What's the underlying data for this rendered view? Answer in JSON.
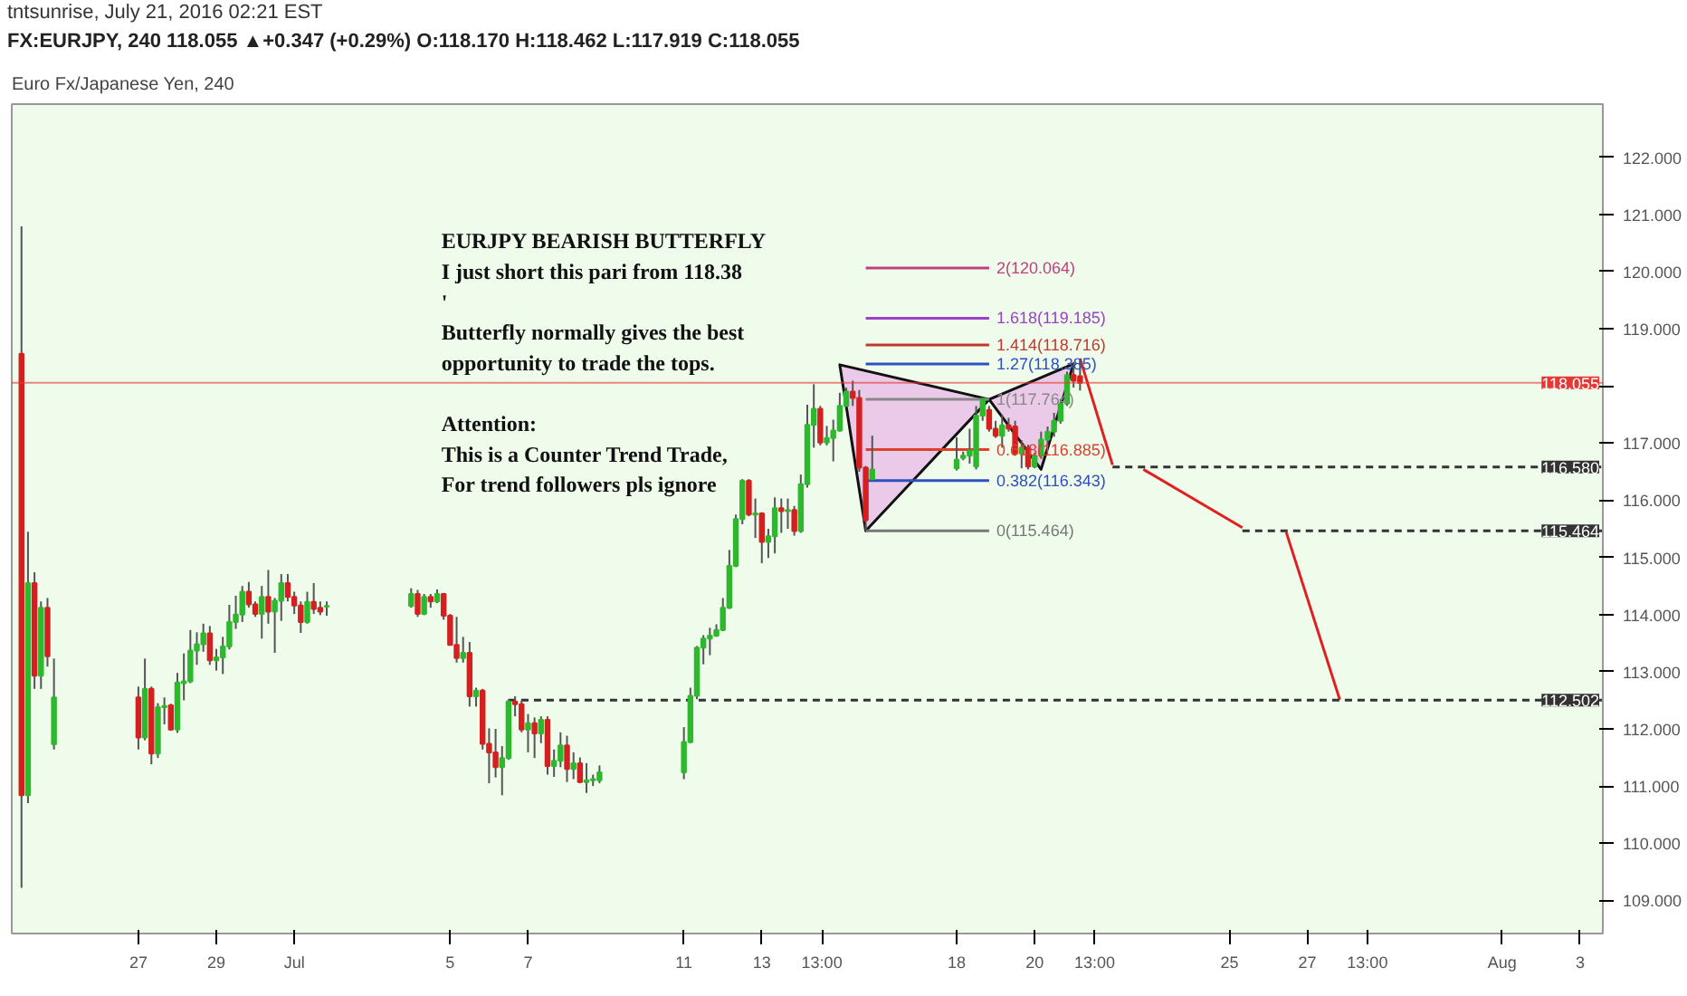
{
  "chart_data": {
    "type": "candlestick",
    "title": "Euro Fx/Japanese Yen, 240",
    "subtitle": "FX:EURJPY, 240 118.055 ▲+0.347 (+0.29%) O:118.170 H:118.462 L:117.919 C:118.055",
    "annotations": [
      "tntsunrise, July 21, 2016 02:21 EST",
      "EURJPY BEARISH BUTTERFLY\nI just short this pari from 118.38\n'\nButterfly normally gives the best\nopportunity to trade the tops.\n\nAttention:\nThis is a Counter Trend Trade,\nFor trend followers pls ignore"
    ],
    "xlim": [
      "2016-06-23T18:00",
      "2016-08-03T14:00"
    ],
    "ylim": [
      108.42,
      122.93
    ],
    "xticks": [
      {
        "value": "2016-06-27",
        "label": "27"
      },
      {
        "value": "2016-06-29",
        "label": "29"
      },
      {
        "value": "2016-07-01",
        "label": "Jul"
      },
      {
        "value": "2016-07-05",
        "label": "5"
      },
      {
        "value": "2016-07-07",
        "label": "7"
      },
      {
        "value": "2016-07-11",
        "label": "11"
      },
      {
        "value": "2016-07-13",
        "label": "13"
      },
      {
        "value": "2016-07-14T13:00",
        "label": "13:00"
      },
      {
        "value": "2016-07-18",
        "label": "18"
      },
      {
        "value": "2016-07-20",
        "label": "20"
      },
      {
        "value": "2016-07-21T13:00",
        "label": "13:00"
      },
      {
        "value": "2016-07-25",
        "label": "25"
      },
      {
        "value": "2016-07-27",
        "label": "27"
      },
      {
        "value": "2016-07-28T13:00",
        "label": "13:00"
      },
      {
        "value": "2016-08-01",
        "label": "Aug"
      },
      {
        "value": "2016-08-03",
        "label": "3"
      }
    ],
    "yticks": [
      {
        "value": 109,
        "label": "109.000"
      },
      {
        "value": 110,
        "label": "110.000"
      },
      {
        "value": 111,
        "label": "111.000"
      },
      {
        "value": 112,
        "label": "112.000"
      },
      {
        "value": 113,
        "label": "113.000"
      },
      {
        "value": 114,
        "label": "114.000"
      },
      {
        "value": 115,
        "label": "115.000"
      },
      {
        "value": 116,
        "label": "116.000"
      },
      {
        "value": 117,
        "label": "117.000"
      },
      {
        "value": 118,
        "label": null
      },
      {
        "value": 119,
        "label": "119.000"
      },
      {
        "value": 120,
        "label": "120.000"
      },
      {
        "value": 121,
        "label": "121.000"
      },
      {
        "value": 122,
        "label": "122.000"
      }
    ],
    "ref_lines": [
      {
        "axis": "y",
        "value": 118.055,
        "label": "118.055",
        "color": "#e53935"
      }
    ],
    "series": [
      {
        "color": "#2db82d",
        "x": [
          "2016-06-24T04:00",
          "2016-06-24T12:00",
          "2016-06-24T20:00",
          "2016-06-27T04:00",
          "2016-06-27T12:00",
          "2016-06-27T16:00",
          "2016-06-28T00:00",
          "2016-06-28T04:00",
          "2016-06-28T08:00",
          "2016-06-28T12:00",
          "2016-06-28T16:00",
          "2016-06-29T00:00",
          "2016-06-29T04:00",
          "2016-06-29T08:00",
          "2016-06-29T12:00",
          "2016-06-29T16:00",
          "2016-06-30T04:00",
          "2016-06-30T12:00",
          "2016-06-30T16:00",
          "2016-07-01T08:00",
          "2016-07-01T20:00",
          "2016-07-04T00:00",
          "2016-07-04T08:00",
          "2016-07-04T16:00",
          "2016-07-05T08:00",
          "2016-07-05T16:00",
          "2016-07-06T08:00",
          "2016-07-06T12:00",
          "2016-07-07T00:00",
          "2016-07-07T08:00",
          "2016-07-07T16:00",
          "2016-07-07T20:00",
          "2016-07-08T04:00",
          "2016-07-08T12:00",
          "2016-07-08T16:00",
          "2016-07-08T20:00",
          "2016-07-11T00:00",
          "2016-07-11T04:00",
          "2016-07-11T08:00",
          "2016-07-11T12:00",
          "2016-07-11T16:00",
          "2016-07-11T20:00",
          "2016-07-12T00:00",
          "2016-07-12T04:00",
          "2016-07-12T08:00",
          "2016-07-12T12:00",
          "2016-07-12T20:00",
          "2016-07-13T04:00",
          "2016-07-13T08:00",
          "2016-07-13T16:00",
          "2016-07-14T00:00",
          "2016-07-14T04:00",
          "2016-07-14T08:00",
          "2016-07-14T16:00",
          "2016-07-14T20:00",
          "2016-07-15T00:00",
          "2016-07-15T04:00",
          "2016-07-15T20:00",
          "2016-07-18T00:00",
          "2016-07-18T04:00",
          "2016-07-18T08:00",
          "2016-07-18T12:00",
          "2016-07-18T16:00",
          "2016-07-19T04:00",
          "2016-07-19T16:00",
          "2016-07-20T00:00",
          "2016-07-20T04:00",
          "2016-07-20T08:00",
          "2016-07-20T12:00",
          "2016-07-20T16:00",
          "2016-07-20T20:00"
        ],
        "ohlc": [
          [
            110.84,
            115.45,
            110.7,
            114.55
          ],
          [
            112.93,
            114.23,
            112.7,
            114.12
          ],
          [
            111.73,
            113.23,
            111.64,
            112.55
          ],
          [
            111.85,
            113.23,
            111.8,
            112.7
          ],
          [
            111.57,
            112.45,
            111.49,
            112.38
          ],
          [
            112.38,
            112.55,
            112.08,
            112.4
          ],
          [
            111.99,
            112.98,
            111.93,
            112.81
          ],
          [
            112.8,
            113.32,
            112.5,
            112.83
          ],
          [
            112.83,
            113.73,
            112.8,
            113.37
          ],
          [
            113.37,
            113.69,
            113.12,
            113.48
          ],
          [
            113.48,
            113.84,
            113.35,
            113.67
          ],
          [
            113.2,
            113.4,
            113.02,
            113.25
          ],
          [
            113.25,
            113.61,
            112.96,
            113.44
          ],
          [
            113.44,
            114.17,
            113.39,
            113.87
          ],
          [
            113.87,
            114.33,
            113.75,
            114.0
          ],
          [
            114.0,
            114.5,
            113.87,
            114.4
          ],
          [
            114.01,
            114.5,
            113.58,
            114.31
          ],
          [
            114.05,
            114.29,
            113.33,
            114.24
          ],
          [
            114.24,
            114.71,
            113.89,
            114.55
          ],
          [
            113.87,
            114.4,
            113.84,
            114.22
          ],
          [
            114.14,
            114.23,
            113.98,
            114.15
          ],
          [
            114.15,
            114.46,
            114.12,
            114.36
          ],
          [
            114.01,
            114.36,
            113.99,
            114.31
          ],
          [
            114.23,
            114.44,
            114.2,
            114.36
          ],
          [
            113.24,
            113.61,
            113.16,
            113.33
          ],
          [
            112.57,
            112.72,
            112.39,
            112.67
          ],
          [
            111.33,
            111.7,
            110.84,
            111.49
          ],
          [
            111.49,
            112.52,
            111.46,
            112.48
          ],
          [
            111.99,
            112.26,
            111.59,
            112.1
          ],
          [
            111.92,
            112.22,
            111.75,
            112.16
          ],
          [
            111.35,
            111.64,
            111.16,
            111.44
          ],
          [
            111.44,
            111.94,
            111.33,
            111.71
          ],
          [
            111.3,
            111.59,
            111.12,
            111.4
          ],
          [
            111.07,
            111.4,
            110.88,
            111.1
          ],
          [
            111.1,
            111.2,
            111.0,
            111.12
          ],
          [
            111.1,
            111.36,
            111.05,
            111.24
          ],
          [
            111.24,
            112.03,
            111.12,
            111.77
          ],
          [
            111.77,
            112.72,
            111.75,
            112.58
          ],
          [
            112.58,
            113.45,
            112.52,
            113.42
          ],
          [
            113.42,
            113.64,
            113.13,
            113.58
          ],
          [
            113.58,
            113.77,
            113.29,
            113.63
          ],
          [
            113.63,
            113.83,
            113.61,
            113.73
          ],
          [
            113.73,
            114.29,
            113.71,
            114.12
          ],
          [
            114.12,
            115.13,
            114.1,
            114.85
          ],
          [
            114.85,
            115.75,
            114.83,
            115.67
          ],
          [
            115.67,
            116.37,
            115.58,
            116.34
          ],
          [
            115.75,
            116.03,
            115.34,
            115.77
          ],
          [
            115.27,
            115.5,
            114.99,
            115.37
          ],
          [
            115.37,
            116.05,
            115.07,
            115.86
          ],
          [
            115.81,
            116.03,
            115.5,
            115.83
          ],
          [
            115.46,
            116.45,
            115.43,
            116.28
          ],
          [
            116.28,
            117.67,
            116.22,
            117.32
          ],
          [
            117.32,
            118.03,
            116.92,
            117.6
          ],
          [
            117.01,
            117.3,
            116.96,
            117.09
          ],
          [
            117.09,
            117.41,
            116.68,
            117.22
          ],
          [
            117.22,
            117.88,
            117.2,
            117.65
          ],
          [
            117.65,
            117.97,
            117.64,
            117.9
          ],
          [
            116.37,
            117.13,
            116.33,
            116.54
          ],
          [
            116.56,
            117.1,
            116.52,
            116.71
          ],
          [
            116.74,
            116.85,
            116.7,
            116.78
          ],
          [
            116.78,
            117.25,
            116.64,
            116.87
          ],
          [
            116.59,
            117.65,
            116.54,
            117.48
          ],
          [
            117.48,
            117.8,
            117.39,
            117.77
          ],
          [
            117.13,
            117.5,
            116.92,
            117.31
          ],
          [
            116.82,
            117.05,
            116.56,
            116.92
          ],
          [
            116.59,
            116.83,
            116.56,
            116.78
          ],
          [
            116.78,
            117.2,
            116.73,
            117.06
          ],
          [
            117.06,
            117.29,
            116.96,
            117.2
          ],
          [
            117.2,
            117.53,
            117.11,
            117.39
          ],
          [
            117.39,
            117.77,
            117.34,
            117.69
          ],
          [
            117.69,
            118.25,
            117.65,
            118.19
          ]
        ]
      },
      {
        "color": "#d42020",
        "x": [
          "2016-06-24T00:00",
          "2016-06-24T08:00",
          "2016-06-24T16:00",
          "2016-06-27T00:00",
          "2016-06-27T08:00",
          "2016-06-27T20:00",
          "2016-06-28T20:00",
          "2016-06-29T20:00",
          "2016-06-30T00:00",
          "2016-06-30T08:00",
          "2016-06-30T20:00",
          "2016-07-01T00:00",
          "2016-07-01T04:00",
          "2016-07-01T12:00",
          "2016-07-01T16:00",
          "2016-07-04T04:00",
          "2016-07-04T12:00",
          "2016-07-04T20:00",
          "2016-07-05T00:00",
          "2016-07-05T04:00",
          "2016-07-05T12:00",
          "2016-07-05T20:00",
          "2016-07-06T00:00",
          "2016-07-06T04:00",
          "2016-07-06T16:00",
          "2016-07-06T20:00",
          "2016-07-07T04:00",
          "2016-07-07T12:00",
          "2016-07-08T00:00",
          "2016-07-08T08:00",
          "2016-07-12T16:00",
          "2016-07-13T00:00",
          "2016-07-13T12:00",
          "2016-07-13T20:00",
          "2016-07-14T12:00",
          "2016-07-15T08:00",
          "2016-07-15T12:00",
          "2016-07-15T16:00",
          "2016-07-18T20:00",
          "2016-07-19T00:00",
          "2016-07-19T08:00",
          "2016-07-19T12:00",
          "2016-07-19T20:00",
          "2016-07-21T00:00",
          "2016-07-21T04:00"
        ],
        "ohlc": [
          [
            118.56,
            120.79,
            109.22,
            110.84
          ],
          [
            114.55,
            114.74,
            112.7,
            112.93
          ],
          [
            114.12,
            114.29,
            113.09,
            113.27
          ],
          [
            112.55,
            112.74,
            111.64,
            111.85
          ],
          [
            112.7,
            112.74,
            111.38,
            111.57
          ],
          [
            112.41,
            112.44,
            111.97,
            111.99
          ],
          [
            113.67,
            113.8,
            113.12,
            113.2
          ],
          [
            114.4,
            114.57,
            114.12,
            114.18
          ],
          [
            114.18,
            114.23,
            113.96,
            114.01
          ],
          [
            114.31,
            114.78,
            113.84,
            114.05
          ],
          [
            114.55,
            114.71,
            114.23,
            114.31
          ],
          [
            114.31,
            114.4,
            114.01,
            114.16
          ],
          [
            114.16,
            114.23,
            113.68,
            113.87
          ],
          [
            114.22,
            114.55,
            114.01,
            114.1
          ],
          [
            114.12,
            114.23,
            113.99,
            114.05
          ],
          [
            114.36,
            114.43,
            113.96,
            114.01
          ],
          [
            114.31,
            114.36,
            114.12,
            114.23
          ],
          [
            114.36,
            114.38,
            113.91,
            113.98
          ],
          [
            113.98,
            114.01,
            113.46,
            113.47
          ],
          [
            113.47,
            113.96,
            113.16,
            113.24
          ],
          [
            113.33,
            113.52,
            112.39,
            112.57
          ],
          [
            112.67,
            112.7,
            111.64,
            111.74
          ],
          [
            111.74,
            112.01,
            111.05,
            111.59
          ],
          [
            111.59,
            112.0,
            111.15,
            111.33
          ],
          [
            112.48,
            112.57,
            112.22,
            112.43
          ],
          [
            112.43,
            112.5,
            111.94,
            111.99
          ],
          [
            112.1,
            112.2,
            111.49,
            111.92
          ],
          [
            112.16,
            112.22,
            111.2,
            111.35
          ],
          [
            111.71,
            111.88,
            111.07,
            111.3
          ],
          [
            111.4,
            111.5,
            111.05,
            111.07
          ],
          [
            116.34,
            116.37,
            115.72,
            115.75
          ],
          [
            115.77,
            115.79,
            114.9,
            115.27
          ],
          [
            115.86,
            116.03,
            115.43,
            115.81
          ],
          [
            115.83,
            115.9,
            115.38,
            115.46
          ],
          [
            117.6,
            117.65,
            116.96,
            117.01
          ],
          [
            117.9,
            118.09,
            117.65,
            117.79
          ],
          [
            117.79,
            117.93,
            116.5,
            116.57
          ],
          [
            116.57,
            116.6,
            115.464,
            115.65
          ],
          [
            117.58,
            117.65,
            117.2,
            117.25
          ],
          [
            117.25,
            117.39,
            117.09,
            117.13
          ],
          [
            117.31,
            117.44,
            117.2,
            117.25
          ],
          [
            117.29,
            117.39,
            116.78,
            116.82
          ],
          [
            116.92,
            116.97,
            116.54,
            116.59
          ],
          [
            118.19,
            118.42,
            117.97,
            118.09
          ],
          [
            118.17,
            118.462,
            117.919,
            118.055
          ]
        ]
      },
      {
        "type": "area",
        "color": "#111111",
        "x": [
          "2016-07-15T00:00",
          "2016-07-15T16:00",
          "2016-07-18T20:00",
          "2016-07-15T00:00"
        ],
        "values": [
          118.37,
          115.464,
          117.764,
          118.37
        ]
      },
      {
        "type": "area",
        "color": "#111111",
        "x": [
          "2016-07-18T20:00",
          "2016-07-20T04:00",
          "2016-07-21T00:00",
          "2016-07-18T20:00"
        ],
        "values": [
          117.764,
          116.54,
          118.385,
          117.764
        ]
      },
      {
        "type": "line",
        "color": "#c2407e",
        "x": [
          "2016-07-15T16:00",
          "2016-07-18T20:00"
        ],
        "values": [
          120.064,
          120.064
        ],
        "value_labels": [
          null,
          "2(120.064)"
        ]
      },
      {
        "type": "line",
        "color": "#9b40c8",
        "x": [
          "2016-07-15T16:00",
          "2016-07-18T20:00"
        ],
        "values": [
          119.185,
          119.185
        ],
        "value_labels": [
          null,
          "1.618(119.185)"
        ]
      },
      {
        "type": "line",
        "color": "#c0392b",
        "x": [
          "2016-07-15T16:00",
          "2016-07-18T20:00"
        ],
        "values": [
          118.716,
          118.716
        ],
        "value_labels": [
          null,
          "1.414(118.716)"
        ]
      },
      {
        "type": "line",
        "color": "#2e4fbf",
        "x": [
          "2016-07-15T16:00",
          "2016-07-18T20:00"
        ],
        "values": [
          118.385,
          118.385
        ],
        "value_labels": [
          null,
          "1.27(118.385)"
        ]
      },
      {
        "type": "line",
        "color": "#888888",
        "x": [
          "2016-07-15T16:00",
          "2016-07-18T20:00"
        ],
        "values": [
          117.764,
          117.764
        ],
        "value_labels": [
          null,
          "1(117.764)"
        ]
      },
      {
        "type": "line",
        "color": "#e0402a",
        "x": [
          "2016-07-15T16:00",
          "2016-07-18T20:00"
        ],
        "values": [
          116.885,
          116.885
        ],
        "value_labels": [
          null,
          "0.618(116.885)"
        ]
      },
      {
        "type": "line",
        "color": "#2e4fbf",
        "x": [
          "2016-07-15T16:00",
          "2016-07-18T20:00"
        ],
        "values": [
          116.343,
          116.343
        ],
        "value_labels": [
          null,
          "0.382(116.343)"
        ]
      },
      {
        "type": "line",
        "color": "#777777",
        "x": [
          "2016-07-15T16:00",
          "2016-07-18T20:00"
        ],
        "values": [
          115.464,
          115.464
        ],
        "value_labels": [
          null,
          "0(115.464)"
        ]
      },
      {
        "type": "line",
        "color": "#e02020",
        "x": [
          "2016-07-21T04:00",
          "2016-07-22T00:00"
        ],
        "values": [
          118.48,
          116.62
        ]
      },
      {
        "type": "line",
        "color": "#e02020",
        "x": [
          "2016-07-22T19:00",
          "2016-07-25T08:00"
        ],
        "values": [
          116.54,
          115.52
        ]
      },
      {
        "type": "line",
        "color": "#e02020",
        "x": [
          "2016-07-26T11:00",
          "2016-07-27T20:00"
        ],
        "values": [
          115.44,
          112.51
        ]
      },
      {
        "type": "line",
        "color": "#333333",
        "line_style": "dashed",
        "x": [
          "2016-07-22T00:00",
          "2016-08-03T14:00"
        ],
        "values": [
          116.58,
          116.58
        ],
        "value_labels": [
          null,
          "116.580"
        ]
      },
      {
        "type": "line",
        "color": "#333333",
        "line_style": "dashed",
        "x": [
          "2016-07-25T08:00",
          "2016-08-03T14:00"
        ],
        "values": [
          115.464,
          115.464
        ],
        "value_labels": [
          null,
          "115.464"
        ]
      },
      {
        "type": "line",
        "color": "#333333",
        "line_style": "dashed",
        "x": [
          "2016-07-06T12:00",
          "2016-08-03T14:00"
        ],
        "values": [
          112.502,
          112.502
        ],
        "value_labels": [
          null,
          "112.502"
        ]
      }
    ]
  }
}
